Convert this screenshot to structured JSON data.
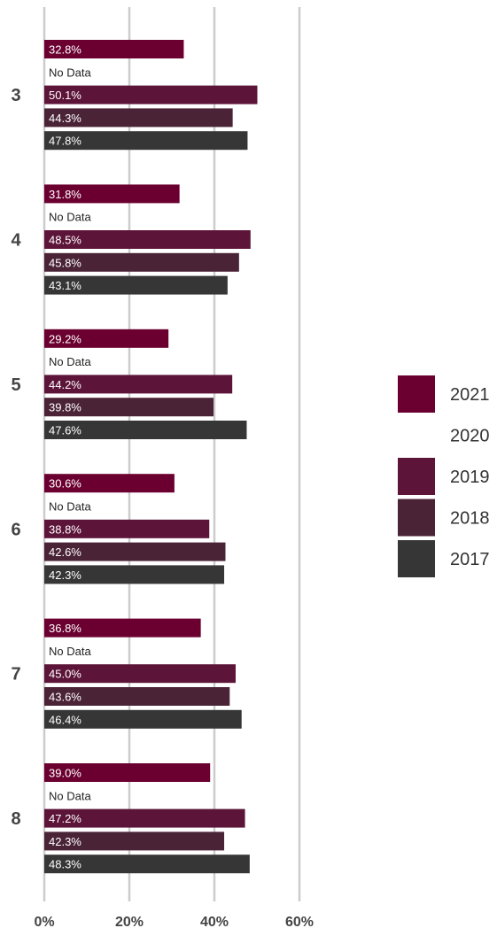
{
  "chart_data": {
    "type": "bar",
    "orientation": "horizontal",
    "categories": [
      "3",
      "4",
      "5",
      "6",
      "7",
      "8"
    ],
    "series": [
      {
        "name": "2021",
        "color": "#6b0030",
        "values": [
          32.8,
          31.8,
          29.2,
          30.6,
          36.8,
          39.0
        ],
        "labels": [
          "32.8%",
          "31.8%",
          "29.2%",
          "30.6%",
          "36.8%",
          "39.0%"
        ]
      },
      {
        "name": "2020",
        "color": "#5a1030",
        "values": [
          null,
          null,
          null,
          null,
          null,
          null
        ],
        "labels": [
          "No Data",
          "No Data",
          "No Data",
          "No Data",
          "No Data",
          "No Data"
        ]
      },
      {
        "name": "2019",
        "color": "#5c1438",
        "values": [
          50.1,
          48.5,
          44.2,
          38.8,
          45.0,
          47.2
        ],
        "labels": [
          "50.1%",
          "48.5%",
          "44.2%",
          "38.8%",
          "45.0%",
          "47.2%"
        ]
      },
      {
        "name": "2018",
        "color": "#4a2336",
        "values": [
          44.3,
          45.8,
          39.8,
          42.6,
          43.6,
          42.3
        ],
        "labels": [
          "44.3%",
          "45.8%",
          "39.8%",
          "42.6%",
          "43.6%",
          "42.3%"
        ]
      },
      {
        "name": "2017",
        "color": "#363636",
        "values": [
          47.8,
          43.1,
          47.6,
          42.3,
          46.4,
          48.3
        ],
        "labels": [
          "47.8%",
          "43.1%",
          "47.6%",
          "42.3%",
          "46.4%",
          "48.3%"
        ]
      }
    ],
    "x_ticks": [
      "0%",
      "20%",
      "40%",
      "60%"
    ],
    "xlim": [
      0,
      60
    ],
    "grid": true,
    "legend": {
      "position": "right",
      "entries": [
        "2021",
        "2020",
        "2019",
        "2018",
        "2017"
      ]
    },
    "title": "",
    "xlabel": "",
    "ylabel": ""
  }
}
